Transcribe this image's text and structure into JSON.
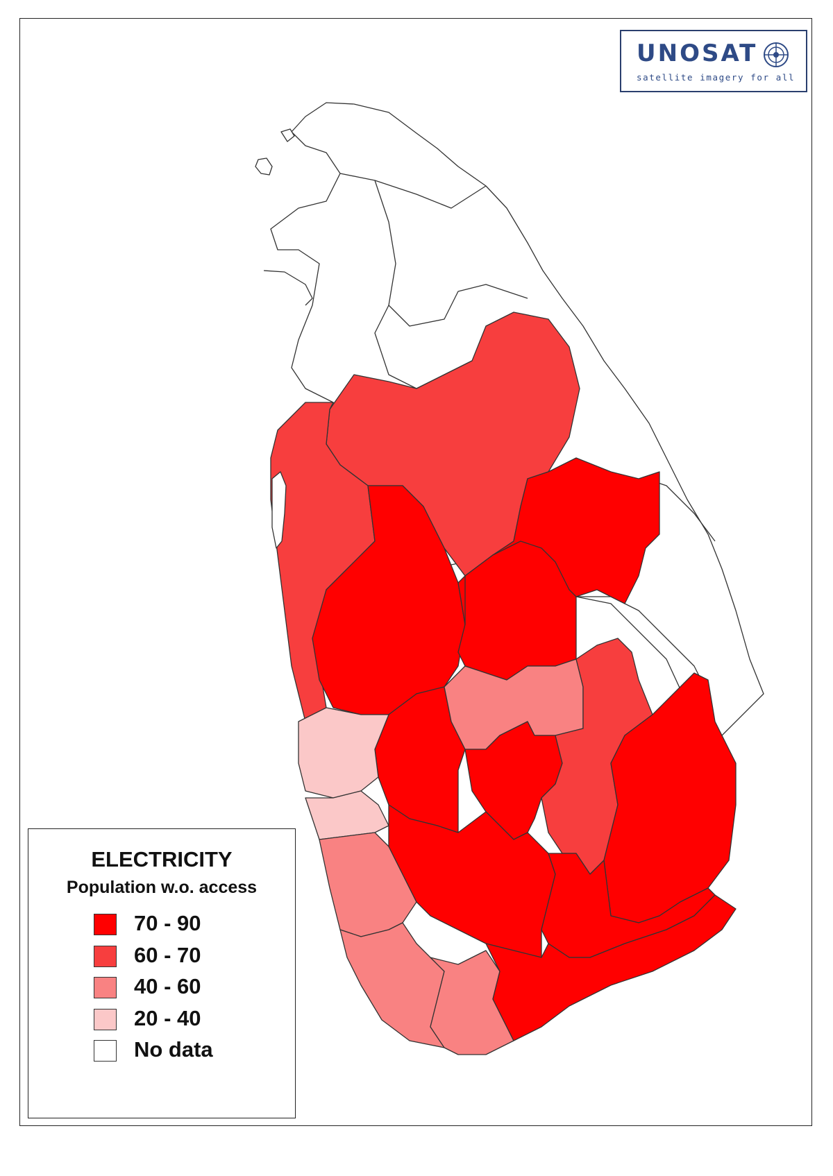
{
  "logo": {
    "title": "UNOSAT",
    "tagline": "satellite imagery for all"
  },
  "legend": {
    "title": "ELECTRICITY",
    "subtitle": "Population w.o. access",
    "items": [
      {
        "label": "70 - 90",
        "color": "#ff0000"
      },
      {
        "label": "60 - 70",
        "color": "#f73e3e"
      },
      {
        "label": "40 - 60",
        "color": "#f98282"
      },
      {
        "label": "20 - 40",
        "color": "#fbc8c8"
      },
      {
        "label": "No data",
        "color": "#ffffff"
      }
    ]
  },
  "colors": {
    "c70_90": "#ff0000",
    "c60_70": "#f73e3e",
    "c40_60": "#f98282",
    "c20_40": "#fbc8c8",
    "no_data": "#ffffff",
    "border": "#333333"
  }
}
